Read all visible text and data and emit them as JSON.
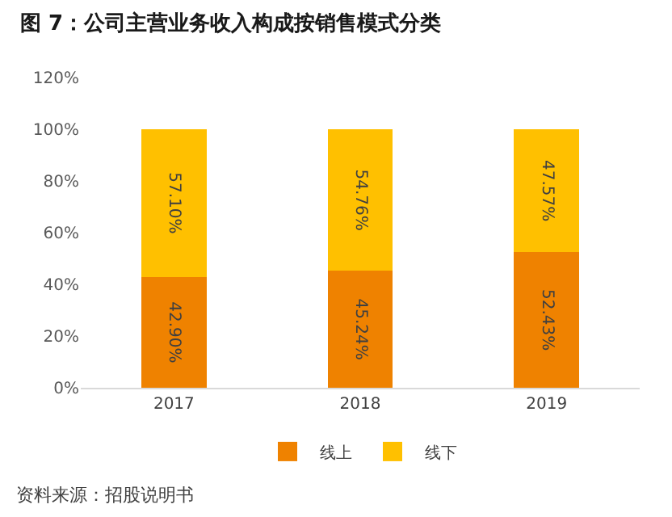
{
  "chart_data": {
    "type": "bar",
    "title": "图 7：公司主营业务收入构成按销售模式分类",
    "categories": [
      "2017",
      "2018",
      "2019"
    ],
    "stacked": true,
    "series": [
      {
        "name": "线上",
        "color": "#ef8200",
        "values": [
          42.9,
          45.24,
          52.43
        ],
        "value_labels": [
          "42.90%",
          "45.24%",
          "52.43%"
        ]
      },
      {
        "name": "线下",
        "color": "#ffc000",
        "values": [
          57.1,
          54.76,
          47.57
        ],
        "value_labels": [
          "57.10%",
          "54.76%",
          "47.57%"
        ]
      }
    ],
    "ylim": [
      0,
      120
    ],
    "yticks": [
      {
        "value": 0,
        "label": "0%"
      },
      {
        "value": 20,
        "label": "20%"
      },
      {
        "value": 40,
        "label": "40%"
      },
      {
        "value": 60,
        "label": "60%"
      },
      {
        "value": 80,
        "label": "80%"
      },
      {
        "value": 100,
        "label": "100%"
      },
      {
        "value": 120,
        "label": "120%"
      }
    ],
    "grid": false,
    "legend": "bottom",
    "annotations": [
      "资料来源：招股说明书"
    ]
  }
}
